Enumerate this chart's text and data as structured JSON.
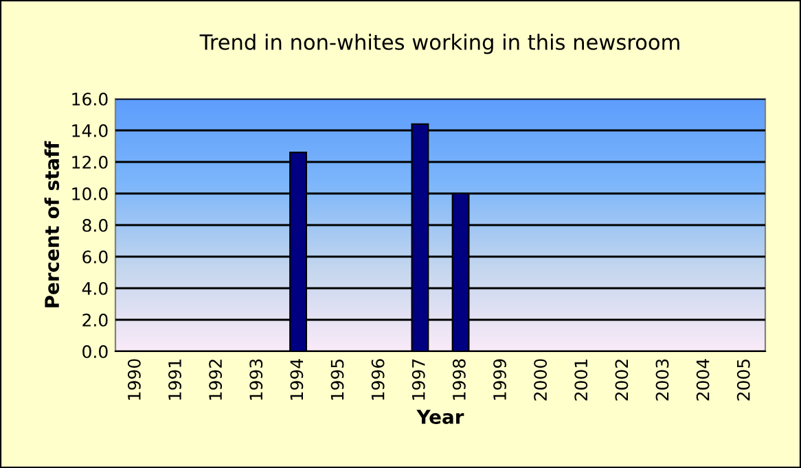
{
  "chart_data": {
    "type": "bar",
    "title": "Trend in non-whites working in this newsroom",
    "xlabel": "Year",
    "ylabel": "Percent of staff",
    "categories": [
      "1990",
      "1991",
      "1992",
      "1993",
      "1994",
      "1995",
      "1996",
      "1997",
      "1998",
      "1999",
      "2000",
      "2001",
      "2002",
      "2003",
      "2004",
      "2005"
    ],
    "values": [
      null,
      null,
      null,
      null,
      12.6,
      null,
      null,
      14.4,
      10.0,
      null,
      null,
      null,
      null,
      null,
      null,
      null
    ],
    "color": "#000080",
    "ylim": [
      0,
      16
    ],
    "yticks": [
      {
        "value": 0,
        "label": "0.0"
      },
      {
        "value": 2,
        "label": "2.0"
      },
      {
        "value": 4,
        "label": "4.0"
      },
      {
        "value": 6,
        "label": "6.0"
      },
      {
        "value": 8,
        "label": "8.0"
      },
      {
        "value": 10,
        "label": "10.0"
      },
      {
        "value": 12,
        "label": "12.0"
      },
      {
        "value": 14,
        "label": "14.0"
      },
      {
        "value": 16,
        "label": "16.0"
      }
    ],
    "grid": "y"
  }
}
